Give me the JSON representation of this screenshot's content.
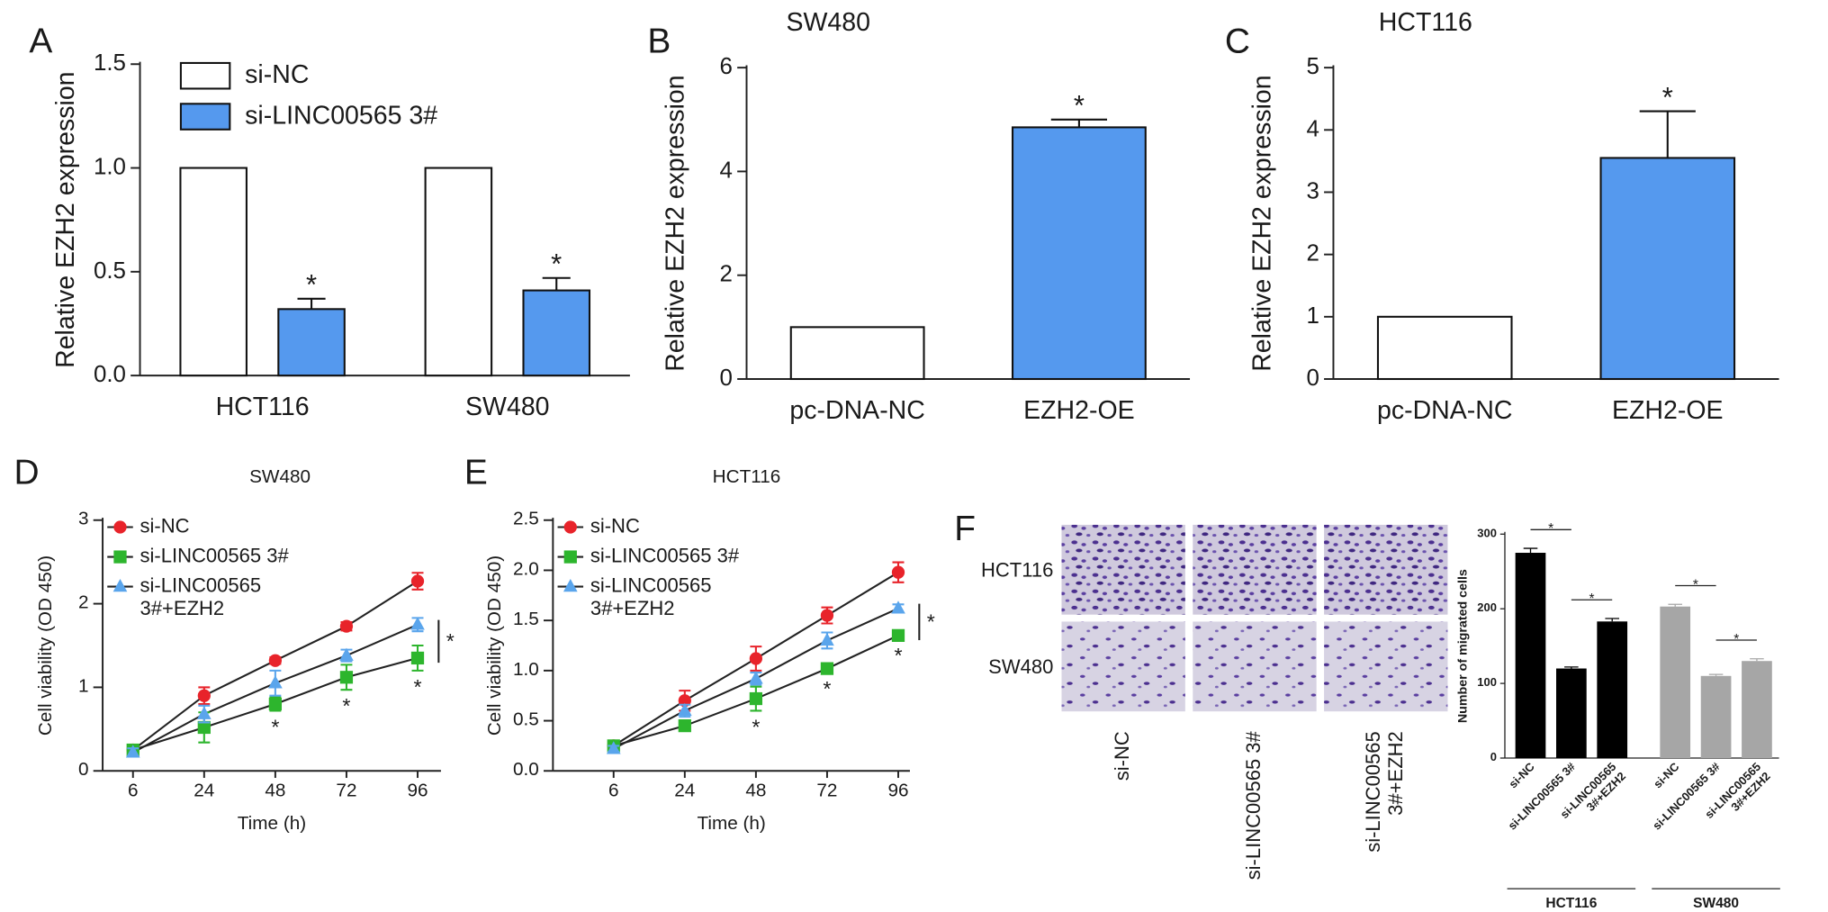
{
  "chart_data": [
    {
      "panel": "A",
      "type": "bar",
      "ylabel": "Relative EZH2 expression",
      "categories": [
        "HCT116",
        "SW480"
      ],
      "series": [
        {
          "name": "si-NC",
          "color": "#ffffff",
          "values": [
            1,
            1
          ]
        },
        {
          "name": "si-LINC00565 3#",
          "color": "#5599ee",
          "values": [
            0.32,
            0.41
          ],
          "errors": [
            0.05,
            0.06
          ],
          "significance": [
            "*",
            "*"
          ]
        }
      ],
      "ylim": [
        0,
        1.5
      ],
      "yticks": [
        {
          "value": 0,
          "label": "0.0"
        },
        0.5,
        {
          "value": 1,
          "label": "1.0"
        },
        1.5
      ],
      "legend": "top-left"
    },
    {
      "panel": "B",
      "type": "bar",
      "title": "SW480",
      "ylabel": "Relative EZH2 expression",
      "categories": [
        "pc-DNA-NC",
        "EZH2-OE"
      ],
      "values": [
        1,
        4.85
      ],
      "errors": [
        null,
        0.15
      ],
      "significance": [
        null,
        "*"
      ],
      "colors": [
        "#ffffff",
        "#5599ee"
      ],
      "ylim": [
        0,
        6
      ],
      "yticks": [
        0,
        2,
        4,
        6
      ]
    },
    {
      "panel": "C",
      "type": "bar",
      "title": "HCT116",
      "ylabel": "Relative EZH2 expression",
      "categories": [
        "pc-DNA-NC",
        "EZH2-OE"
      ],
      "values": [
        1,
        3.55
      ],
      "errors": [
        null,
        0.75
      ],
      "significance": [
        null,
        "*"
      ],
      "colors": [
        "#ffffff",
        "#5599ee"
      ],
      "ylim": [
        0,
        5
      ],
      "yticks": [
        0,
        1,
        2,
        3,
        4,
        5
      ]
    },
    {
      "panel": "D",
      "type": "line",
      "title": "SW480",
      "xlabel": "Time (h)",
      "ylabel": "Cell viability (OD 450)",
      "categories": [
        "6",
        "24",
        "48",
        "72",
        "96"
      ],
      "series": [
        {
          "name": "si-NC",
          "color": "#e8232a",
          "marker": "circle",
          "values": [
            0.25,
            0.9,
            1.32,
            1.73,
            2.27
          ],
          "errors": [
            0.05,
            0.1,
            0.04,
            0.05,
            0.1
          ]
        },
        {
          "name": "si-LINC00565 3#",
          "color": "#2db52d",
          "marker": "square",
          "values": [
            0.25,
            0.52,
            0.8,
            1.12,
            1.35
          ],
          "errors": [
            0.05,
            0.18,
            0.08,
            0.15,
            0.15
          ],
          "significance": [
            null,
            null,
            "*",
            "*",
            "*"
          ]
        },
        {
          "name": "si-LINC00565\n3#+EZH2",
          "color": "#5aa5ec",
          "marker": "triangle",
          "values": [
            0.22,
            0.68,
            1.05,
            1.38,
            1.75
          ],
          "errors": [
            0.05,
            0.1,
            0.15,
            0.07,
            0.08
          ]
        }
      ],
      "bracket_label": "*",
      "ylim": [
        0,
        3
      ],
      "yticks": [
        0,
        1,
        2,
        3
      ],
      "legend": "top-left"
    },
    {
      "panel": "E",
      "type": "line",
      "title": "HCT116",
      "xlabel": "Time (h)",
      "ylabel": "Cell viability (OD 450)",
      "categories": [
        "6",
        "24",
        "48",
        "72",
        "96"
      ],
      "series": [
        {
          "name": "si-NC",
          "color": "#e8232a",
          "marker": "circle",
          "values": [
            0.25,
            0.7,
            1.12,
            1.55,
            1.98
          ],
          "errors": [
            0.03,
            0.1,
            0.12,
            0.08,
            0.1
          ]
        },
        {
          "name": "si-LINC00565 3#",
          "color": "#2db52d",
          "marker": "square",
          "values": [
            0.25,
            0.45,
            0.72,
            1.02,
            1.35
          ],
          "errors": [
            0.03,
            0.05,
            0.12,
            0.04,
            0.04
          ],
          "significance": [
            null,
            null,
            "*",
            "*",
            "*"
          ]
        },
        {
          "name": "si-LINC00565\n3#+EZH2",
          "color": "#5aa5ec",
          "marker": "triangle",
          "values": [
            0.22,
            0.6,
            0.92,
            1.3,
            1.62
          ],
          "errors": [
            0.03,
            0.06,
            0.06,
            0.08,
            0.04
          ]
        }
      ],
      "bracket_label": "*",
      "ylim": [
        0,
        2.5
      ],
      "yticks": [
        {
          "value": 0,
          "label": "0.0"
        },
        0.5,
        {
          "value": 1,
          "label": "1.0"
        },
        1.5,
        {
          "value": 2,
          "label": "2.0"
        },
        2.5
      ],
      "legend": "top-left"
    },
    {
      "panel": "F",
      "type": "bar",
      "ylabel": "Number of migrated cells",
      "categories": [
        "si-NC",
        "si-LINC00565 3#",
        "si-LINC00565\n3#+EZH2"
      ],
      "groups": [
        {
          "name": "HCT116",
          "color": "#000000",
          "values": [
            275,
            120,
            183
          ],
          "errors": [
            6,
            2,
            4
          ],
          "significance": [
            "*",
            "*"
          ]
        },
        {
          "name": "SW480",
          "color": "#a6a6a6",
          "values": [
            203,
            110,
            130
          ],
          "errors": [
            3,
            2,
            3
          ],
          "significance": [
            "*",
            "*"
          ]
        }
      ],
      "ylim": [
        0,
        300
      ],
      "yticks": [
        0,
        100,
        200,
        300
      ],
      "micrographs": {
        "rows": [
          "HCT116",
          "SW480"
        ],
        "columns": [
          "si-NC",
          "si-LINC00565 3#",
          "si-LINC00565\n3#+EZH2"
        ]
      }
    }
  ]
}
